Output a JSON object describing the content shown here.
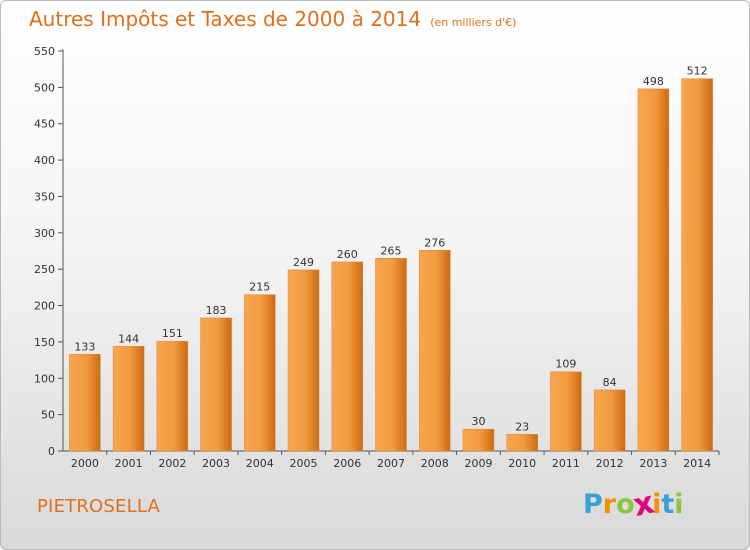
{
  "title": {
    "main": "Autres Impôts et Taxes de 2000 à 2014",
    "unit": "(en milliers d'€)"
  },
  "city": "PIETROSELLA",
  "brand": {
    "text": "Proxiti",
    "letters": [
      "P",
      "r",
      "o",
      "x",
      "i",
      "t",
      "i"
    ],
    "colors": [
      "#3aa0d8",
      "#f39200",
      "#8cc63f",
      "#e6007e",
      "#f39200",
      "#3aa0d8",
      "#8cc63f"
    ]
  },
  "colors": {
    "accent": "#e0701b",
    "bar_light": "#f7a650",
    "bar_dark": "#cc6a12"
  },
  "chart_data": {
    "type": "bar",
    "title": "Autres Impôts et Taxes de 2000 à 2014 (en milliers d'€)",
    "xlabel": "",
    "ylabel": "",
    "categories": [
      "2000",
      "2001",
      "2002",
      "2003",
      "2004",
      "2005",
      "2006",
      "2007",
      "2008",
      "2009",
      "2010",
      "2011",
      "2012",
      "2013",
      "2014"
    ],
    "values": [
      133,
      144,
      151,
      183,
      215,
      249,
      260,
      265,
      276,
      30,
      23,
      109,
      84,
      498,
      512
    ],
    "ylim": [
      0,
      550
    ],
    "yticks": [
      0,
      50,
      100,
      150,
      200,
      250,
      300,
      350,
      400,
      450,
      500,
      550
    ],
    "grid": false,
    "legend": "none"
  }
}
